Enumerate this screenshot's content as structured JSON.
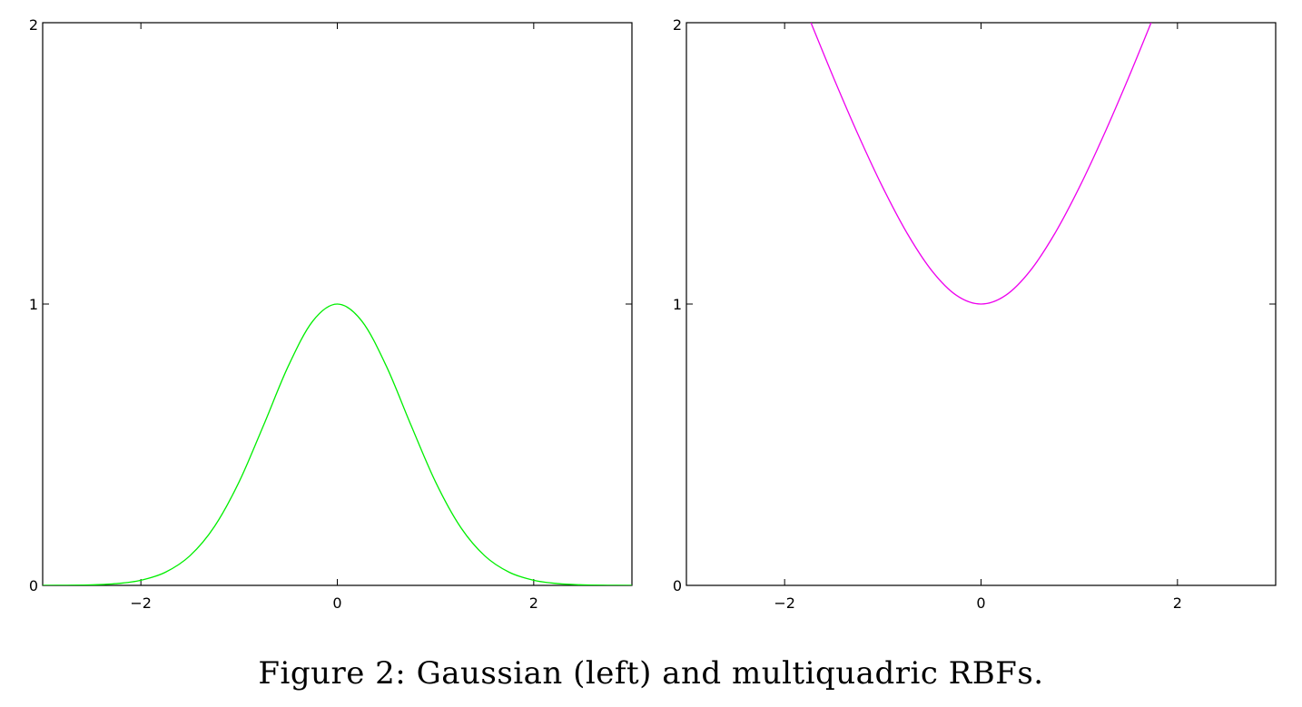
{
  "figure": {
    "caption": "Figure 2: Gaussian (left) and multiquadric RBFs."
  },
  "chart_data": [
    {
      "type": "line",
      "title": "",
      "xlabel": "",
      "ylabel": "",
      "xlim": [
        -3,
        3
      ],
      "ylim": [
        0,
        2
      ],
      "xticks": [
        -2,
        0,
        2
      ],
      "xtick_labels": [
        "−2",
        "0",
        "2"
      ],
      "yticks": [
        0,
        1,
        2
      ],
      "ytick_labels": [
        "0",
        "1",
        "2"
      ],
      "grid": false,
      "legend": "none",
      "series": [
        {
          "color": "#00ee00",
          "x": [
            -3.0,
            -2.75,
            -2.5,
            -2.25,
            -2.0,
            -1.75,
            -1.5,
            -1.25,
            -1.0,
            -0.75,
            -0.5,
            -0.25,
            0.0,
            0.25,
            0.5,
            0.75,
            1.0,
            1.25,
            1.5,
            1.75,
            2.0,
            2.25,
            2.5,
            2.75,
            3.0
          ],
          "y": [
            0.0001,
            0.0005,
            0.0019,
            0.0063,
            0.0183,
            0.0468,
            0.1054,
            0.2096,
            0.3679,
            0.5698,
            0.7788,
            0.9394,
            1.0,
            0.9394,
            0.7788,
            0.5698,
            0.3679,
            0.2096,
            0.1054,
            0.0468,
            0.0183,
            0.0063,
            0.0019,
            0.0005,
            0.0001
          ]
        }
      ]
    },
    {
      "type": "line",
      "title": "",
      "xlabel": "",
      "ylabel": "",
      "xlim": [
        -3,
        3
      ],
      "ylim": [
        0,
        2
      ],
      "xticks": [
        -2,
        0,
        2
      ],
      "xtick_labels": [
        "−2",
        "0",
        "2"
      ],
      "yticks": [
        0,
        1,
        2
      ],
      "ytick_labels": [
        "0",
        "1",
        "2"
      ],
      "grid": false,
      "legend": "none",
      "series": [
        {
          "color": "#ee00ee",
          "x": [
            -1.732,
            -1.5,
            -1.25,
            -1.0,
            -0.75,
            -0.5,
            -0.25,
            0.0,
            0.25,
            0.5,
            0.75,
            1.0,
            1.25,
            1.5,
            1.732
          ],
          "y": [
            2.0,
            1.8028,
            1.6008,
            1.4142,
            1.25,
            1.118,
            1.0308,
            1.0,
            1.0308,
            1.118,
            1.25,
            1.4142,
            1.6008,
            1.8028,
            2.0
          ]
        }
      ]
    }
  ]
}
